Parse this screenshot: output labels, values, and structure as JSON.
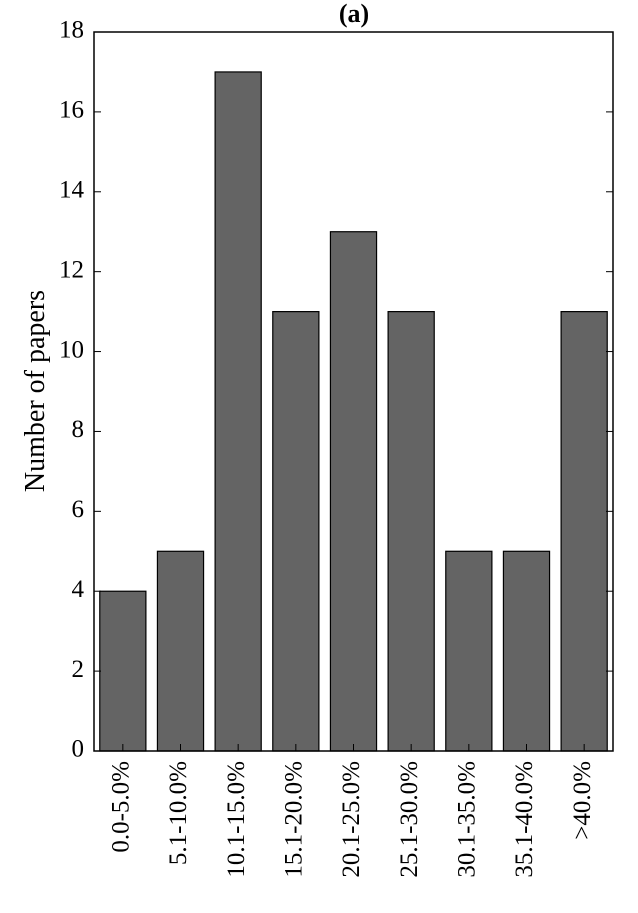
{
  "chart_data": {
    "type": "bar",
    "title": "(a)",
    "xlabel": "",
    "ylabel": "Number of papers",
    "categories": [
      "0.0-5.0%",
      "5.1-10.0%",
      "10.1-15.0%",
      "15.1-20.0%",
      "20.1-25.0%",
      "25.1-30.0%",
      "30.1-35.0%",
      "35.1-40.0%",
      ">40.0%"
    ],
    "values": [
      4,
      5,
      17,
      11,
      13,
      11,
      5,
      5,
      11
    ],
    "ylim": [
      0,
      18
    ],
    "yticks": [
      0,
      2,
      4,
      6,
      8,
      10,
      12,
      14,
      16,
      18
    ],
    "grid": false,
    "legend": "none",
    "bar_color": "#646464",
    "bar_edge_color": "#000000"
  }
}
